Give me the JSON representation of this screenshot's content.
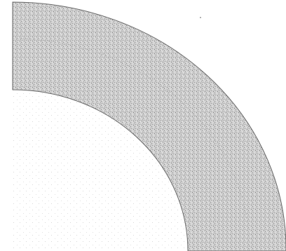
{
  "figure": {
    "shape": "quarter-annulus",
    "fill_style": "stippled-speckle",
    "colors": {
      "background": "#ffffff",
      "fill": "#c9c9c9",
      "speckle_dark": "#8a8a8a",
      "speckle_light": "#f2f2f2",
      "outline": "#6a6a6a",
      "inner_texture_dots": "#d8d8d8"
    }
  }
}
